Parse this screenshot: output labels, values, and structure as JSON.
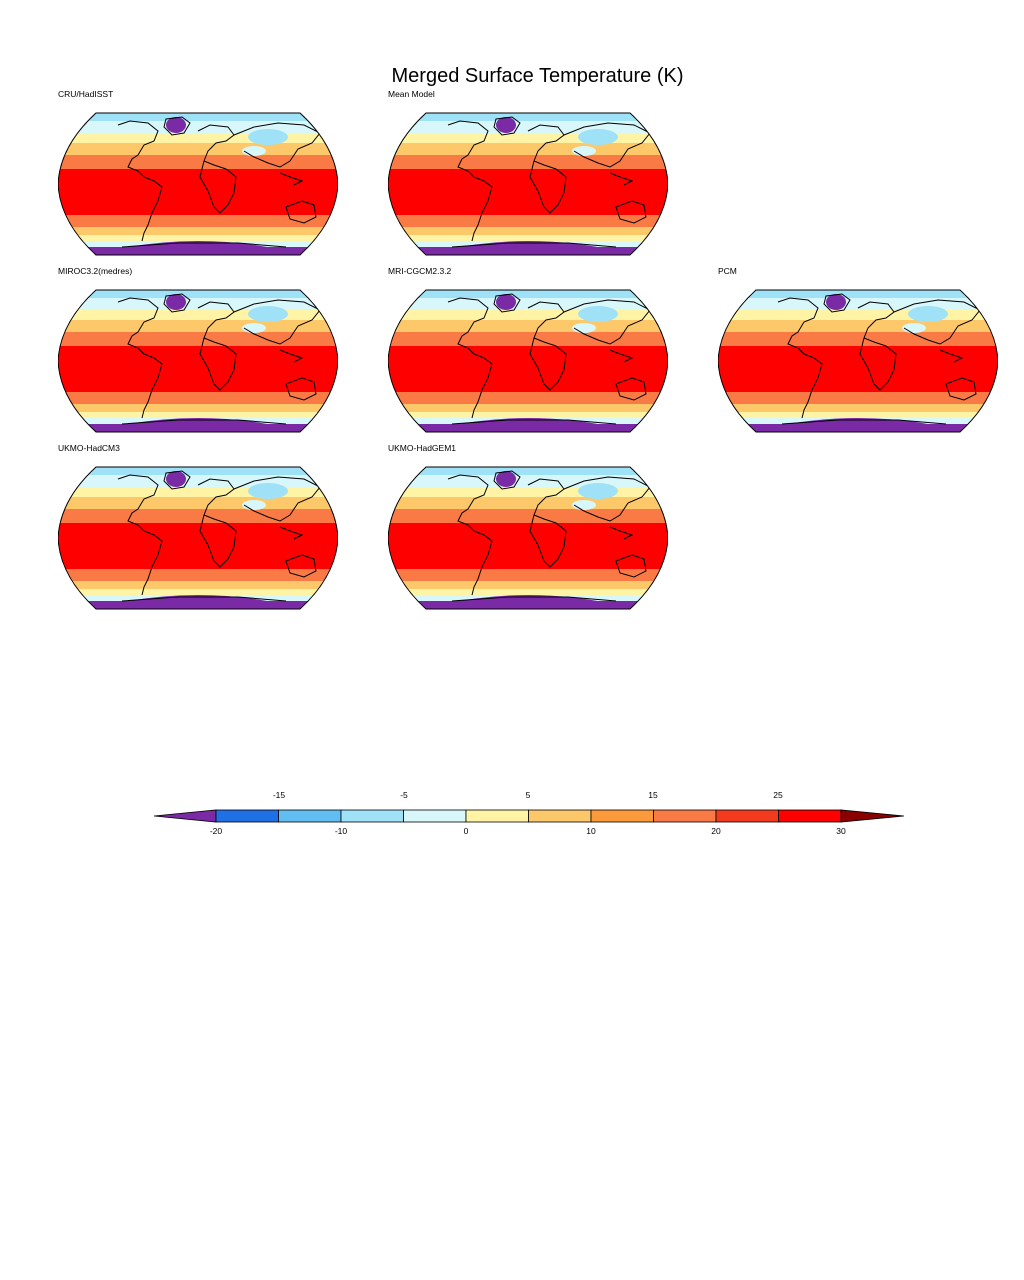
{
  "title": "Merged Surface Temperature (K)",
  "panels": [
    {
      "label": "CRU/HadISST"
    },
    {
      "label": "Mean Model"
    },
    {
      "label": "MIROC3.2(medres)"
    },
    {
      "label": "MRI-CGCM2.3.2"
    },
    {
      "label": "PCM"
    },
    {
      "label": "UKMO-HadCM3"
    },
    {
      "label": "UKMO-HadGEM1"
    }
  ],
  "colorbar": {
    "upper_ticks": [
      "-15",
      "-5",
      "5",
      "15",
      "25"
    ],
    "lower_ticks": [
      "-20",
      "-10",
      "0",
      "10",
      "20",
      "30"
    ],
    "levels": [
      -20,
      -15,
      -10,
      -5,
      0,
      5,
      10,
      15,
      20,
      25,
      30
    ],
    "colors": [
      "#7b2aa6",
      "#1f6fe5",
      "#62bdf2",
      "#9fe1f7",
      "#d8f7fb",
      "#fff3a6",
      "#fdc86a",
      "#fb9a3a",
      "#f97a45",
      "#f23a1f",
      "#fe0000",
      "#8a0000"
    ]
  },
  "map_colors": {
    "antarctica": "#7b2aa6",
    "polar": "#9fe1f7",
    "subpolar": "#d8f7fb",
    "cool": "#fff3a6",
    "mild": "#fdc86a",
    "warm": "#fb9a3a",
    "hot": "#f97a45",
    "tropics": "#fe0000",
    "greenland": "#7b2aa6",
    "coastline": "#000000"
  }
}
